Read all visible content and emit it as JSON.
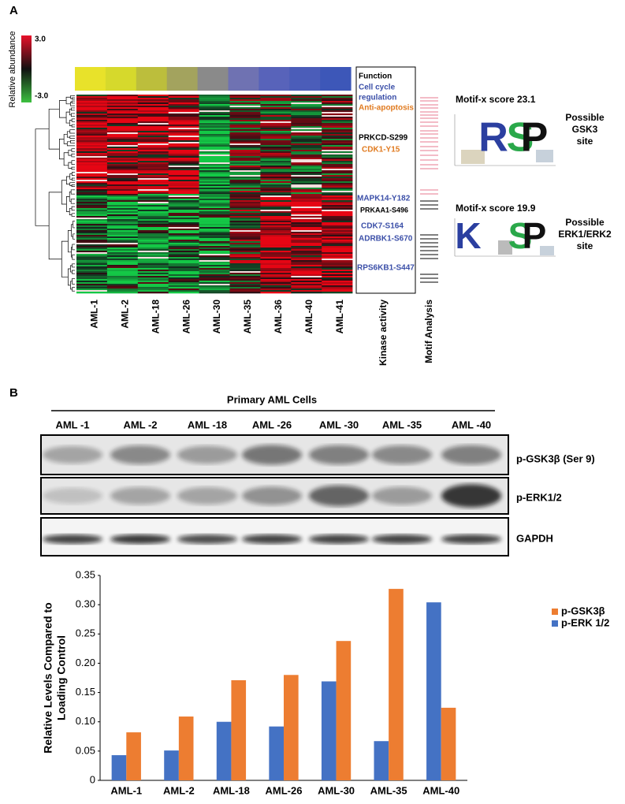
{
  "panel_a": {
    "label": "A",
    "colorbar": {
      "title": "Relative abundance",
      "max_label": "3.0",
      "min_label": "-3.0"
    },
    "columns": [
      "AML-1",
      "AML-2",
      "AML-18",
      "AML-26",
      "AML-30",
      "AML-35",
      "AML-36",
      "AML-40",
      "AML-41"
    ],
    "function_box": {
      "title": "Function",
      "cell_cycle": [
        "Cell cycle",
        "regulation"
      ],
      "anti_apoptosis": "Anti-apoptosis"
    },
    "kinases": [
      "PRKCD-S299",
      "CDK1-Y15",
      "MAPK14-Y182",
      "PRKAA1-S496",
      "CDK7-S164",
      "ADRBK1-S670",
      "RPS6KB1-S447"
    ],
    "kinase_column": "Kinase activity",
    "motif_column": "Motif Analysis",
    "motifs": [
      {
        "score": "Motif-x score 23.1",
        "letters": [
          "R",
          "S",
          "P"
        ],
        "site": [
          "Possible",
          "GSK3",
          "site"
        ]
      },
      {
        "score": "Motif-x score 19.9",
        "letters": [
          "K",
          "S",
          "P"
        ],
        "site": [
          "Possible",
          "ERK1/ERK2",
          "site"
        ]
      }
    ]
  },
  "panel_b": {
    "label": "B",
    "blot_title": "Primary AML Cells",
    "lanes": [
      "AML -1",
      "AML -2",
      "AML -18",
      "AML -26",
      "AML -30",
      "AML -35",
      "AML -40"
    ],
    "blots": [
      "p-GSK3β (Ser 9)",
      "p-ERK1/2",
      "GAPDH"
    ]
  },
  "chart_data": {
    "type": "bar",
    "y_label": [
      "Relative Levels Compared to",
      "Loading Control"
    ],
    "categories": [
      "AML-1",
      "AML-2",
      "AML-18",
      "AML-26",
      "AML-30",
      "AML-35",
      "AML-40"
    ],
    "series": [
      {
        "name": "p-ERK 1/2",
        "color": "#4472c4",
        "values": [
          0.043,
          0.051,
          0.1,
          0.092,
          0.169,
          0.067,
          0.304
        ]
      },
      {
        "name": "p-GSK3β",
        "color": "#ed7d31",
        "values": [
          0.082,
          0.109,
          0.171,
          0.18,
          0.238,
          0.327,
          0.124
        ]
      }
    ],
    "ylim": [
      0,
      0.35
    ],
    "yticks": [
      0,
      0.05,
      {
        "value": 0.1,
        "label": "0.10"
      },
      0.15,
      {
        "value": 0.2,
        "label": "0.20"
      },
      0.25,
      {
        "value": 0.3,
        "label": "0.30"
      },
      0.35
    ],
    "legend": "upper right"
  }
}
